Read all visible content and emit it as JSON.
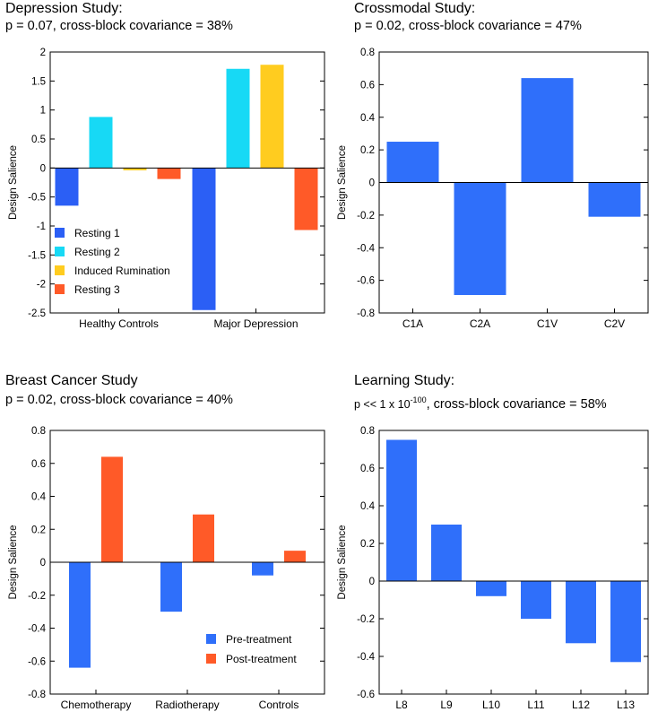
{
  "chart_data": [
    {
      "type": "bar",
      "title": "Depression Study:",
      "subtitle": "p = 0.07, cross-block covariance = 38%",
      "ylabel": "Design Salience",
      "xlabel": "",
      "categories": [
        "Healthy Controls",
        "Major Depression"
      ],
      "series": [
        {
          "name": "Resting 1",
          "color": "#2b5ff5",
          "values": [
            -0.65,
            -2.45
          ]
        },
        {
          "name": "Resting 2",
          "color": "#17d9f5",
          "values": [
            0.88,
            1.71
          ]
        },
        {
          "name": "Induced Rumination",
          "color": "#ffcc1f",
          "values": [
            -0.04,
            1.78
          ]
        },
        {
          "name": "Resting 3",
          "color": "#ff5a28",
          "values": [
            -0.19,
            -1.07
          ]
        }
      ],
      "ylim": [
        -2.5,
        2
      ],
      "yticks": [
        "2",
        "1.5",
        "1",
        "0.5",
        "0",
        "-0.5",
        "-1",
        "-1.5",
        "-2",
        "-2.5"
      ],
      "ytick_values": [
        2,
        1.5,
        1,
        0.5,
        0,
        -0.5,
        -1,
        -1.5,
        -2,
        -2.5
      ],
      "legend": "bottom-left",
      "grid": false
    },
    {
      "type": "bar",
      "title": "Crossmodal Study:",
      "subtitle": "p = 0.02, cross-block covariance = 47%",
      "ylabel": "Design Salience",
      "xlabel": "",
      "categories": [
        "C1A",
        "C2A",
        "C1V",
        "C2V"
      ],
      "series": [
        {
          "name": "Design Salience",
          "color": "#2f6ffa",
          "values": [
            0.25,
            -0.69,
            0.64,
            -0.21
          ]
        }
      ],
      "ylim": [
        -0.8,
        0.8
      ],
      "yticks": [
        "0.8",
        "0.6",
        "0.4",
        "0.2",
        "0",
        "-0.2",
        "-0.4",
        "-0.6",
        "-0.8"
      ],
      "ytick_values": [
        0.8,
        0.6,
        0.4,
        0.2,
        0,
        -0.2,
        -0.4,
        -0.6,
        -0.8
      ],
      "grid": false
    },
    {
      "type": "bar",
      "title": "Breast Cancer Study",
      "subtitle": "p = 0.02, cross-block covariance = 40%",
      "ylabel": "Design Salience",
      "xlabel": "",
      "categories": [
        "Chemotherapy",
        "Radiotherapy",
        "Controls"
      ],
      "series": [
        {
          "name": "Pre-treatment",
          "color": "#2f6ffa",
          "values": [
            -0.64,
            -0.3,
            -0.08
          ]
        },
        {
          "name": "Post-treatment",
          "color": "#ff5a28",
          "values": [
            0.64,
            0.29,
            0.07
          ]
        }
      ],
      "ylim": [
        -0.8,
        0.8
      ],
      "yticks": [
        "0.8",
        "0.6",
        "0.4",
        "0.2",
        "0",
        "-0.2",
        "-0.4",
        "-0.6",
        "-0.8"
      ],
      "ytick_values": [
        0.8,
        0.6,
        0.4,
        0.2,
        0,
        -0.2,
        -0.4,
        -0.6,
        -0.8
      ],
      "legend": "bottom-right",
      "grid": false
    },
    {
      "type": "bar",
      "title": "Learning Study:",
      "subtitle_parts": {
        "pre": "p << 1 x 10",
        "sup": "-100",
        "post": ", cross-block covariance = 58%"
      },
      "ylabel": "Design Salience",
      "xlabel": "",
      "categories": [
        "L8",
        "L9",
        "L10",
        "L11",
        "L12",
        "L13"
      ],
      "series": [
        {
          "name": "Design Salience",
          "color": "#2f6ffa",
          "values": [
            0.75,
            0.3,
            -0.08,
            -0.2,
            -0.33,
            -0.43
          ]
        }
      ],
      "ylim": [
        -0.6,
        0.8
      ],
      "yticks": [
        "0.8",
        "0.6",
        "0.4",
        "0.2",
        "0",
        "-0.2",
        "-0.4",
        "-0.6"
      ],
      "ytick_values": [
        0.8,
        0.6,
        0.4,
        0.2,
        0,
        -0.2,
        -0.4,
        -0.6
      ],
      "grid": false
    }
  ]
}
